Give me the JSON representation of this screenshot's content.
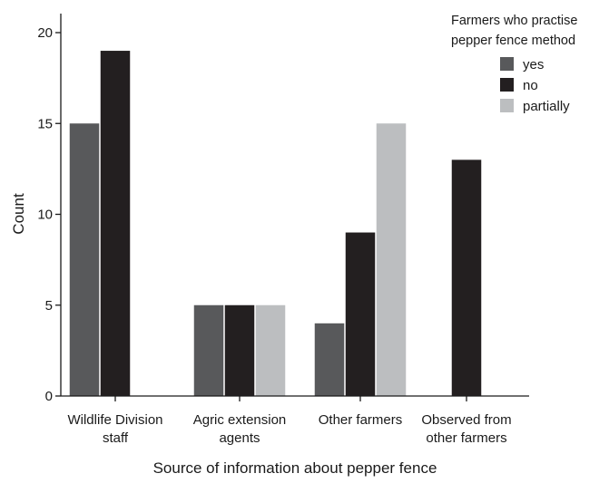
{
  "chart_data": {
    "type": "bar",
    "title": "",
    "xlabel": "Source of information about pepper fence",
    "ylabel": "Count",
    "ylim": [
      0,
      21
    ],
    "yticks": [
      0,
      5,
      10,
      15,
      20
    ],
    "grid": false,
    "legend_position": "top-right",
    "legend_title": [
      "Farmers who practise",
      "pepper fence method"
    ],
    "categories": [
      [
        "Wildlife Division",
        "staff"
      ],
      [
        "Agric extension",
        "agents"
      ],
      [
        "Other farmers"
      ],
      [
        "Observed from",
        "other farmers"
      ]
    ],
    "series": [
      {
        "name": "yes",
        "color": "#58595b",
        "values": [
          15,
          5,
          4,
          null
        ]
      },
      {
        "name": "no",
        "color": "#231f20",
        "values": [
          19,
          5,
          9,
          13
        ]
      },
      {
        "name": "partially",
        "color": "#bcbec0",
        "values": [
          null,
          5,
          15,
          null
        ]
      }
    ]
  }
}
